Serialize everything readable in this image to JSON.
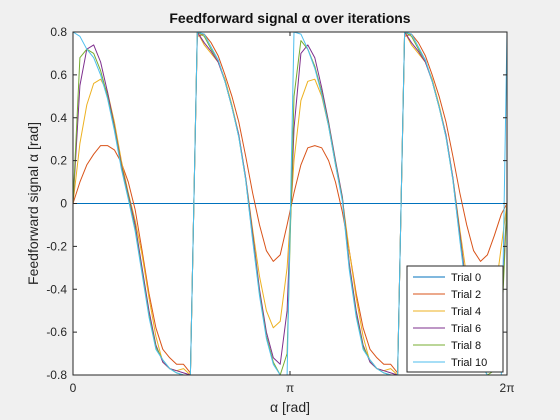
{
  "chart_data": {
    "type": "line",
    "title": "Feedforward signal α over iterations",
    "xlabel": "α [rad]",
    "ylabel": "Feedforward signal α [rad]",
    "xlim": [
      0,
      6.2832
    ],
    "ylim": [
      -0.8,
      0.8
    ],
    "xticks": [
      {
        "value": 0,
        "label": "0"
      },
      {
        "value": 3.1416,
        "label": "π"
      },
      {
        "value": 6.2832,
        "label": "2π"
      }
    ],
    "yticks": [
      {
        "value": 0.8,
        "label": "0.8"
      },
      {
        "value": 0.6,
        "label": "0.6"
      },
      {
        "value": 0.4,
        "label": "0.4"
      },
      {
        "value": 0.2,
        "label": "0.2"
      },
      {
        "value": 0,
        "label": "0"
      },
      {
        "value": -0.2,
        "label": "-0.2"
      },
      {
        "value": -0.4,
        "label": "-0.4"
      },
      {
        "value": -0.6,
        "label": "-0.6"
      },
      {
        "value": -0.8,
        "label": "-0.8"
      }
    ],
    "grid": false,
    "legend_position": "bottom-right",
    "series": [
      {
        "name": "Trial 0",
        "color": "#0072bd",
        "x": [
          0,
          6.2832
        ],
        "y": [
          0,
          0
        ]
      },
      {
        "name": "Trial 2",
        "color": "#d95319",
        "x": [
          0,
          0.1,
          0.2,
          0.3,
          0.4,
          0.5,
          0.6,
          0.7,
          0.8,
          0.9,
          1.0,
          1.1,
          1.2,
          1.3,
          1.4,
          1.5,
          1.6,
          1.7,
          1.8,
          1.9,
          2.0,
          2.1,
          2.2,
          2.3,
          2.4,
          2.5,
          2.6,
          2.7,
          2.8,
          2.9,
          3.0,
          3.1,
          3.2,
          3.3,
          3.4,
          3.5,
          3.6,
          3.7,
          3.8,
          3.9,
          4.0,
          4.1,
          4.2,
          4.3,
          4.4,
          4.5,
          4.6,
          4.7,
          4.8,
          4.9,
          5.0,
          5.1,
          5.2,
          5.3,
          5.4,
          5.5,
          5.6,
          5.7,
          5.8,
          5.9,
          6.0,
          6.1,
          6.2,
          6.2832
        ],
        "y": [
          0,
          0.1,
          0.18,
          0.23,
          0.27,
          0.27,
          0.25,
          0.19,
          0.1,
          -0.03,
          -0.22,
          -0.42,
          -0.58,
          -0.68,
          -0.72,
          -0.75,
          -0.75,
          -0.79,
          0.78,
          0.79,
          0.75,
          0.69,
          0.6,
          0.5,
          0.38,
          0.22,
          0.05,
          -0.1,
          -0.22,
          -0.27,
          -0.24,
          -0.1,
          0.05,
          0.18,
          0.26,
          0.27,
          0.26,
          0.2,
          0.1,
          -0.04,
          -0.22,
          -0.42,
          -0.58,
          -0.68,
          -0.72,
          -0.75,
          -0.75,
          -0.79,
          0.78,
          0.79,
          0.75,
          0.69,
          0.6,
          0.5,
          0.38,
          0.22,
          0.05,
          -0.1,
          -0.22,
          -0.27,
          -0.24,
          -0.15,
          -0.05,
          0
        ]
      },
      {
        "name": "Trial 4",
        "color": "#edb120",
        "x": [
          0,
          0.1,
          0.2,
          0.3,
          0.4,
          0.5,
          0.6,
          0.7,
          0.8,
          0.9,
          1.0,
          1.1,
          1.2,
          1.3,
          1.4,
          1.5,
          1.6,
          1.7,
          1.8,
          1.9,
          2.0,
          2.1,
          2.2,
          2.3,
          2.4,
          2.5,
          2.6,
          2.7,
          2.8,
          2.9,
          3.0,
          3.1,
          3.2,
          3.3,
          3.4,
          3.5,
          3.6,
          3.7,
          3.8,
          3.9,
          4.0,
          4.1,
          4.2,
          4.3,
          4.4,
          4.5,
          4.6,
          4.7,
          4.8,
          4.9,
          5.0,
          5.1,
          5.2,
          5.3,
          5.4,
          5.5,
          5.6,
          5.7,
          5.8,
          5.9,
          6.0,
          6.1,
          6.2,
          6.2832
        ],
        "y": [
          0,
          0.28,
          0.46,
          0.56,
          0.58,
          0.52,
          0.38,
          0.2,
          0.05,
          -0.08,
          -0.24,
          -0.44,
          -0.62,
          -0.74,
          -0.77,
          -0.78,
          -0.77,
          -0.8,
          0.8,
          0.74,
          0.7,
          0.66,
          0.58,
          0.46,
          0.32,
          0.12,
          -0.12,
          -0.34,
          -0.5,
          -0.58,
          -0.55,
          -0.3,
          0.2,
          0.48,
          0.57,
          0.58,
          0.5,
          0.36,
          0.18,
          0.02,
          -0.22,
          -0.44,
          -0.62,
          -0.74,
          -0.77,
          -0.78,
          -0.77,
          -0.8,
          0.8,
          0.74,
          0.7,
          0.66,
          0.58,
          0.46,
          0.32,
          0.12,
          -0.12,
          -0.34,
          -0.5,
          -0.58,
          -0.55,
          -0.45,
          -0.2,
          0
        ]
      },
      {
        "name": "Trial 6",
        "color": "#7e2f8e",
        "x": [
          0,
          0.1,
          0.2,
          0.3,
          0.4,
          0.5,
          0.6,
          0.7,
          0.8,
          0.9,
          1.0,
          1.1,
          1.2,
          1.3,
          1.4,
          1.5,
          1.6,
          1.7,
          1.8,
          1.9,
          2.0,
          2.1,
          2.2,
          2.3,
          2.4,
          2.5,
          2.6,
          2.7,
          2.8,
          2.9,
          3.0,
          3.1,
          3.2,
          3.3,
          3.4,
          3.5,
          3.6,
          3.7,
          3.8,
          3.9,
          4.0,
          4.1,
          4.2,
          4.3,
          4.4,
          4.5,
          4.6,
          4.7,
          4.8,
          4.9,
          5.0,
          5.1,
          5.2,
          5.3,
          5.4,
          5.5,
          5.6,
          5.7,
          5.8,
          5.9,
          6.0,
          6.1,
          6.2,
          6.2832
        ],
        "y": [
          0,
          0.55,
          0.72,
          0.74,
          0.66,
          0.52,
          0.36,
          0.18,
          0.04,
          -0.1,
          -0.3,
          -0.5,
          -0.66,
          -0.74,
          -0.77,
          -0.78,
          -0.79,
          -0.8,
          0.8,
          0.75,
          0.71,
          0.66,
          0.57,
          0.45,
          0.32,
          0.12,
          -0.14,
          -0.4,
          -0.6,
          -0.72,
          -0.75,
          -0.5,
          0.35,
          0.7,
          0.74,
          0.68,
          0.54,
          0.38,
          0.2,
          0.03,
          -0.28,
          -0.5,
          -0.66,
          -0.74,
          -0.77,
          -0.78,
          -0.79,
          -0.8,
          0.8,
          0.75,
          0.71,
          0.66,
          0.57,
          0.45,
          0.32,
          0.12,
          -0.14,
          -0.4,
          -0.6,
          -0.72,
          -0.75,
          -0.72,
          -0.5,
          0
        ]
      },
      {
        "name": "Trial 8",
        "color": "#77ac30",
        "x": [
          0,
          0.1,
          0.2,
          0.3,
          0.4,
          0.5,
          0.6,
          0.7,
          0.8,
          0.9,
          1.0,
          1.1,
          1.2,
          1.3,
          1.4,
          1.5,
          1.6,
          1.7,
          1.8,
          1.9,
          2.0,
          2.1,
          2.2,
          2.3,
          2.4,
          2.5,
          2.6,
          2.7,
          2.8,
          2.9,
          3.0,
          3.1,
          3.2,
          3.3,
          3.4,
          3.5,
          3.6,
          3.7,
          3.8,
          3.9,
          4.0,
          4.1,
          4.2,
          4.3,
          4.4,
          4.5,
          4.6,
          4.7,
          4.8,
          4.9,
          5.0,
          5.1,
          5.2,
          5.3,
          5.4,
          5.5,
          5.6,
          5.7,
          5.8,
          5.9,
          6.0,
          6.1,
          6.2,
          6.2832
        ],
        "y": [
          0,
          0.68,
          0.72,
          0.7,
          0.62,
          0.5,
          0.35,
          0.17,
          0.03,
          -0.12,
          -0.32,
          -0.52,
          -0.67,
          -0.73,
          -0.77,
          -0.79,
          -0.8,
          -0.8,
          0.8,
          0.78,
          0.72,
          0.67,
          0.57,
          0.45,
          0.31,
          0.11,
          -0.16,
          -0.42,
          -0.62,
          -0.74,
          -0.8,
          -0.7,
          0.5,
          0.76,
          0.72,
          0.64,
          0.52,
          0.37,
          0.19,
          0.02,
          -0.3,
          -0.52,
          -0.67,
          -0.73,
          -0.77,
          -0.79,
          -0.8,
          -0.8,
          0.8,
          0.78,
          0.72,
          0.67,
          0.57,
          0.45,
          0.31,
          0.11,
          -0.16,
          -0.42,
          -0.62,
          -0.74,
          -0.8,
          -0.78,
          -0.6,
          0
        ]
      },
      {
        "name": "Trial 10",
        "color": "#4dbeee",
        "x": [
          0,
          0.1,
          0.2,
          0.3,
          0.4,
          0.5,
          0.6,
          0.7,
          0.8,
          0.9,
          1.0,
          1.1,
          1.2,
          1.3,
          1.4,
          1.5,
          1.6,
          1.7,
          1.8,
          1.9,
          2.0,
          2.1,
          2.2,
          2.3,
          2.4,
          2.5,
          2.6,
          2.7,
          2.8,
          2.9,
          3.0,
          3.1,
          3.2,
          3.3,
          3.4,
          3.5,
          3.6,
          3.7,
          3.8,
          3.9,
          4.0,
          4.1,
          4.2,
          4.3,
          4.4,
          4.5,
          4.6,
          4.7,
          4.8,
          4.9,
          5.0,
          5.1,
          5.2,
          5.3,
          5.4,
          5.5,
          5.6,
          5.7,
          5.8,
          5.9,
          6.0,
          6.1,
          6.2,
          6.2832
        ],
        "y": [
          0.8,
          0.78,
          0.72,
          0.68,
          0.6,
          0.49,
          0.34,
          0.16,
          0.02,
          -0.13,
          -0.33,
          -0.53,
          -0.68,
          -0.73,
          -0.77,
          -0.79,
          -0.8,
          -0.8,
          0.8,
          0.79,
          0.73,
          0.67,
          0.57,
          0.45,
          0.31,
          0.11,
          -0.17,
          -0.43,
          -0.63,
          -0.75,
          -0.8,
          -0.8,
          0.8,
          0.79,
          0.72,
          0.63,
          0.51,
          0.36,
          0.18,
          0.01,
          -0.31,
          -0.53,
          -0.68,
          -0.73,
          -0.77,
          -0.79,
          -0.8,
          -0.8,
          0.8,
          0.79,
          0.73,
          0.67,
          0.57,
          0.45,
          0.31,
          0.11,
          -0.17,
          -0.43,
          -0.63,
          -0.75,
          -0.8,
          -0.8,
          -0.8,
          0.8
        ]
      }
    ]
  }
}
